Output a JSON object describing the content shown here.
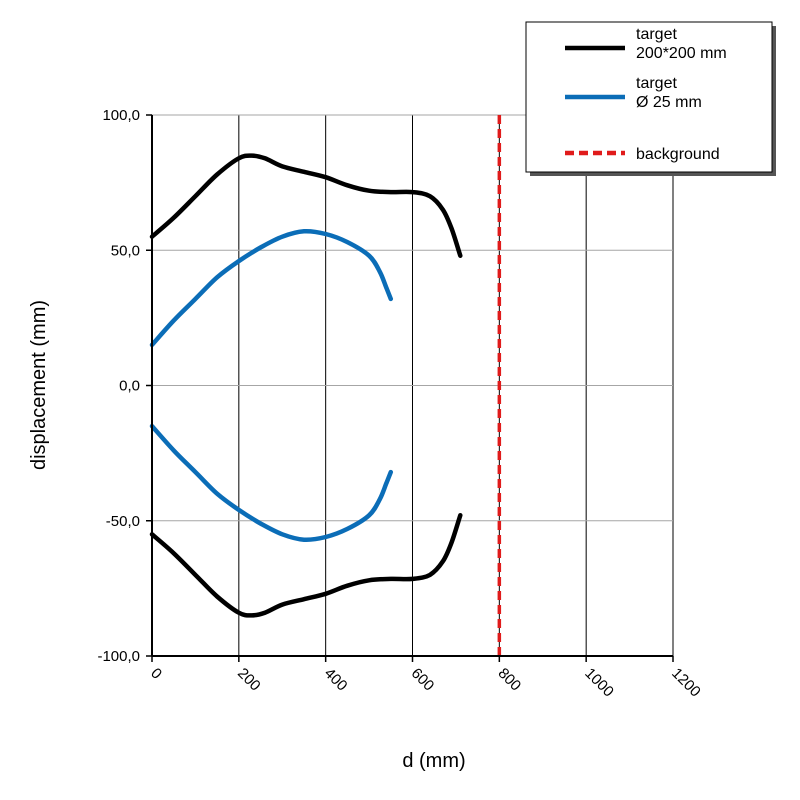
{
  "chart_data": {
    "type": "line",
    "xlabel": "d (mm)",
    "ylabel": "displacement (mm)",
    "xlim": [
      0,
      1200
    ],
    "ylim": [
      -100,
      100
    ],
    "x_ticks": [
      0,
      200,
      400,
      600,
      800,
      1000,
      1200
    ],
    "x_tick_labels": [
      "0",
      "200",
      "400",
      "600",
      "800",
      "1000",
      "1200"
    ],
    "y_ticks": [
      100,
      50,
      0,
      -50,
      -100
    ],
    "y_tick_labels": [
      "100,0",
      "50,0",
      "0,0",
      "-50,0",
      "-100,0"
    ],
    "grid": true,
    "legend_position": "top-right",
    "series": [
      {
        "name": "target\n200*200 mm",
        "color": "#000000",
        "style": "solid",
        "upper": [
          [
            0,
            55
          ],
          [
            50,
            62
          ],
          [
            100,
            70
          ],
          [
            150,
            78
          ],
          [
            200,
            84
          ],
          [
            230,
            85
          ],
          [
            260,
            84
          ],
          [
            300,
            81
          ],
          [
            350,
            79
          ],
          [
            400,
            77
          ],
          [
            450,
            74
          ],
          [
            500,
            72
          ],
          [
            550,
            71.5
          ],
          [
            600,
            71.5
          ],
          [
            640,
            70
          ],
          [
            670,
            65
          ],
          [
            690,
            58
          ],
          [
            710,
            48
          ]
        ],
        "lower": [
          [
            0,
            -55
          ],
          [
            50,
            -62
          ],
          [
            100,
            -70
          ],
          [
            150,
            -78
          ],
          [
            200,
            -84
          ],
          [
            230,
            -85
          ],
          [
            260,
            -84
          ],
          [
            300,
            -81
          ],
          [
            350,
            -79
          ],
          [
            400,
            -77
          ],
          [
            450,
            -74
          ],
          [
            500,
            -72
          ],
          [
            550,
            -71.5
          ],
          [
            600,
            -71.5
          ],
          [
            640,
            -70
          ],
          [
            670,
            -65
          ],
          [
            690,
            -58
          ],
          [
            710,
            -48
          ]
        ]
      },
      {
        "name": "target\nØ 25 mm",
        "color": "#0b6db7",
        "style": "solid",
        "upper": [
          [
            0,
            15
          ],
          [
            50,
            24
          ],
          [
            100,
            32
          ],
          [
            150,
            40
          ],
          [
            200,
            46
          ],
          [
            250,
            51
          ],
          [
            300,
            55
          ],
          [
            350,
            57
          ],
          [
            400,
            56
          ],
          [
            450,
            53
          ],
          [
            500,
            48
          ],
          [
            525,
            42
          ],
          [
            540,
            36
          ],
          [
            550,
            32
          ]
        ],
        "lower": [
          [
            0,
            -15
          ],
          [
            50,
            -24
          ],
          [
            100,
            -32
          ],
          [
            150,
            -40
          ],
          [
            200,
            -46
          ],
          [
            250,
            -51
          ],
          [
            300,
            -55
          ],
          [
            350,
            -57
          ],
          [
            400,
            -56
          ],
          [
            450,
            -53
          ],
          [
            500,
            -48
          ],
          [
            525,
            -42
          ],
          [
            540,
            -36
          ],
          [
            550,
            -32
          ]
        ]
      },
      {
        "name": "background",
        "color": "#e01b1b",
        "style": "dashed",
        "x": 800
      }
    ]
  }
}
